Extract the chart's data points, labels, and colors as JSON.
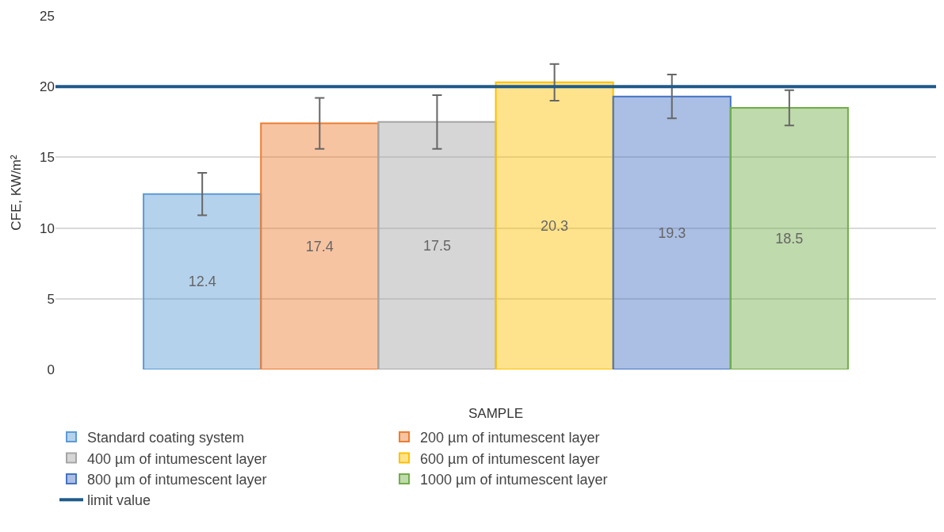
{
  "chart_data": {
    "type": "bar",
    "categories": [
      null
    ],
    "xlabel": "SAMPLE",
    "ylabel": "CFE, KW/m²",
    "ylim": [
      0,
      25
    ],
    "yticks": [
      0,
      5,
      10,
      15,
      20,
      25
    ],
    "grid": "y",
    "legend": "bottom",
    "data_labels": true,
    "series": [
      {
        "name": "Standard coating system",
        "color": "#5b9bd5",
        "values": [
          12.4
        ],
        "errors": [
          1.5
        ]
      },
      {
        "name": "200 µm of intumescent layer",
        "color": "#ed7d31",
        "values": [
          17.4
        ],
        "errors": [
          1.8
        ]
      },
      {
        "name": "400 µm of intumescent layer",
        "color": "#a5a5a5",
        "values": [
          17.5
        ],
        "errors": [
          1.9
        ]
      },
      {
        "name": "600 µm of intumescent layer",
        "color": "#ffc000",
        "values": [
          20.3
        ],
        "errors": [
          1.3
        ]
      },
      {
        "name": "800 µm of intumescent layer",
        "color": "#4472c4",
        "values": [
          19.3
        ],
        "errors": [
          1.55
        ]
      },
      {
        "name": "1000 µm of intumescent layer",
        "color": "#70ad47",
        "values": [
          18.5
        ],
        "errors": [
          1.25
        ]
      }
    ],
    "ref_lines": [
      {
        "axis": "y",
        "value": 20,
        "label": "limit value",
        "color": "#1f5a8a"
      }
    ]
  }
}
